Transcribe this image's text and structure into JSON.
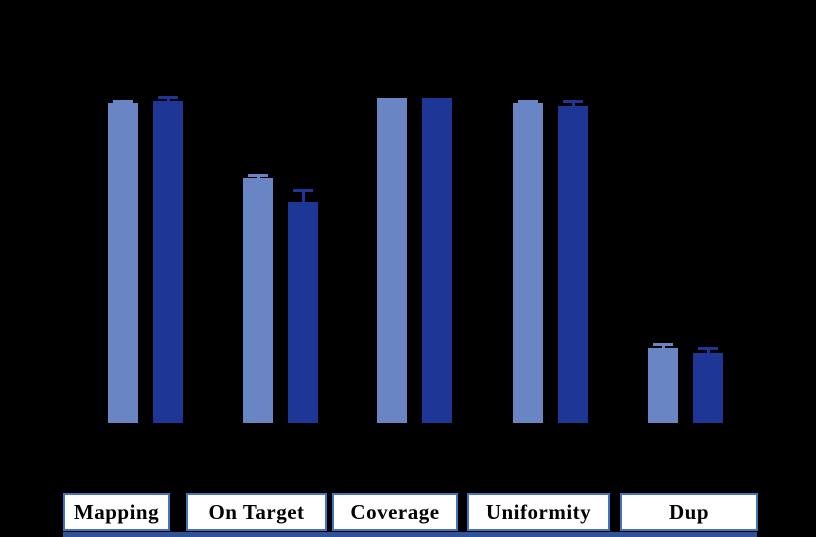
{
  "chart_data": {
    "type": "bar",
    "title": "",
    "xlabel": "",
    "ylabel": "",
    "categories": [
      "Mapping",
      "On Target",
      "Coverage",
      "Uniformity",
      "Dup"
    ],
    "series": [
      {
        "name": "light_blue",
        "color": "#6A85C4",
        "values": [
          98.5,
          75.5,
          100,
          98.5,
          23
        ],
        "errors": [
          0.6,
          1.0,
          0,
          0.5,
          1.2
        ]
      },
      {
        "name": "dark_blue",
        "color": "#1E3796",
        "values": [
          99,
          68,
          100,
          97.5,
          21.5
        ],
        "errors": [
          1.2,
          3.7,
          0,
          1.5,
          1.5
        ]
      }
    ],
    "ylim": [
      0,
      100
    ],
    "grid": false,
    "error_bars": "upper-only, capped, same color as bar",
    "legend_position": "none-visible"
  },
  "colors": {
    "background": "#000000",
    "light_series": "#6A85C4",
    "dark_series": "#1E3796",
    "label_box_fill": "#FFFFFF",
    "label_box_border": "#4472C4",
    "label_text": "#000000",
    "bottom_strip": "#2F5496"
  }
}
